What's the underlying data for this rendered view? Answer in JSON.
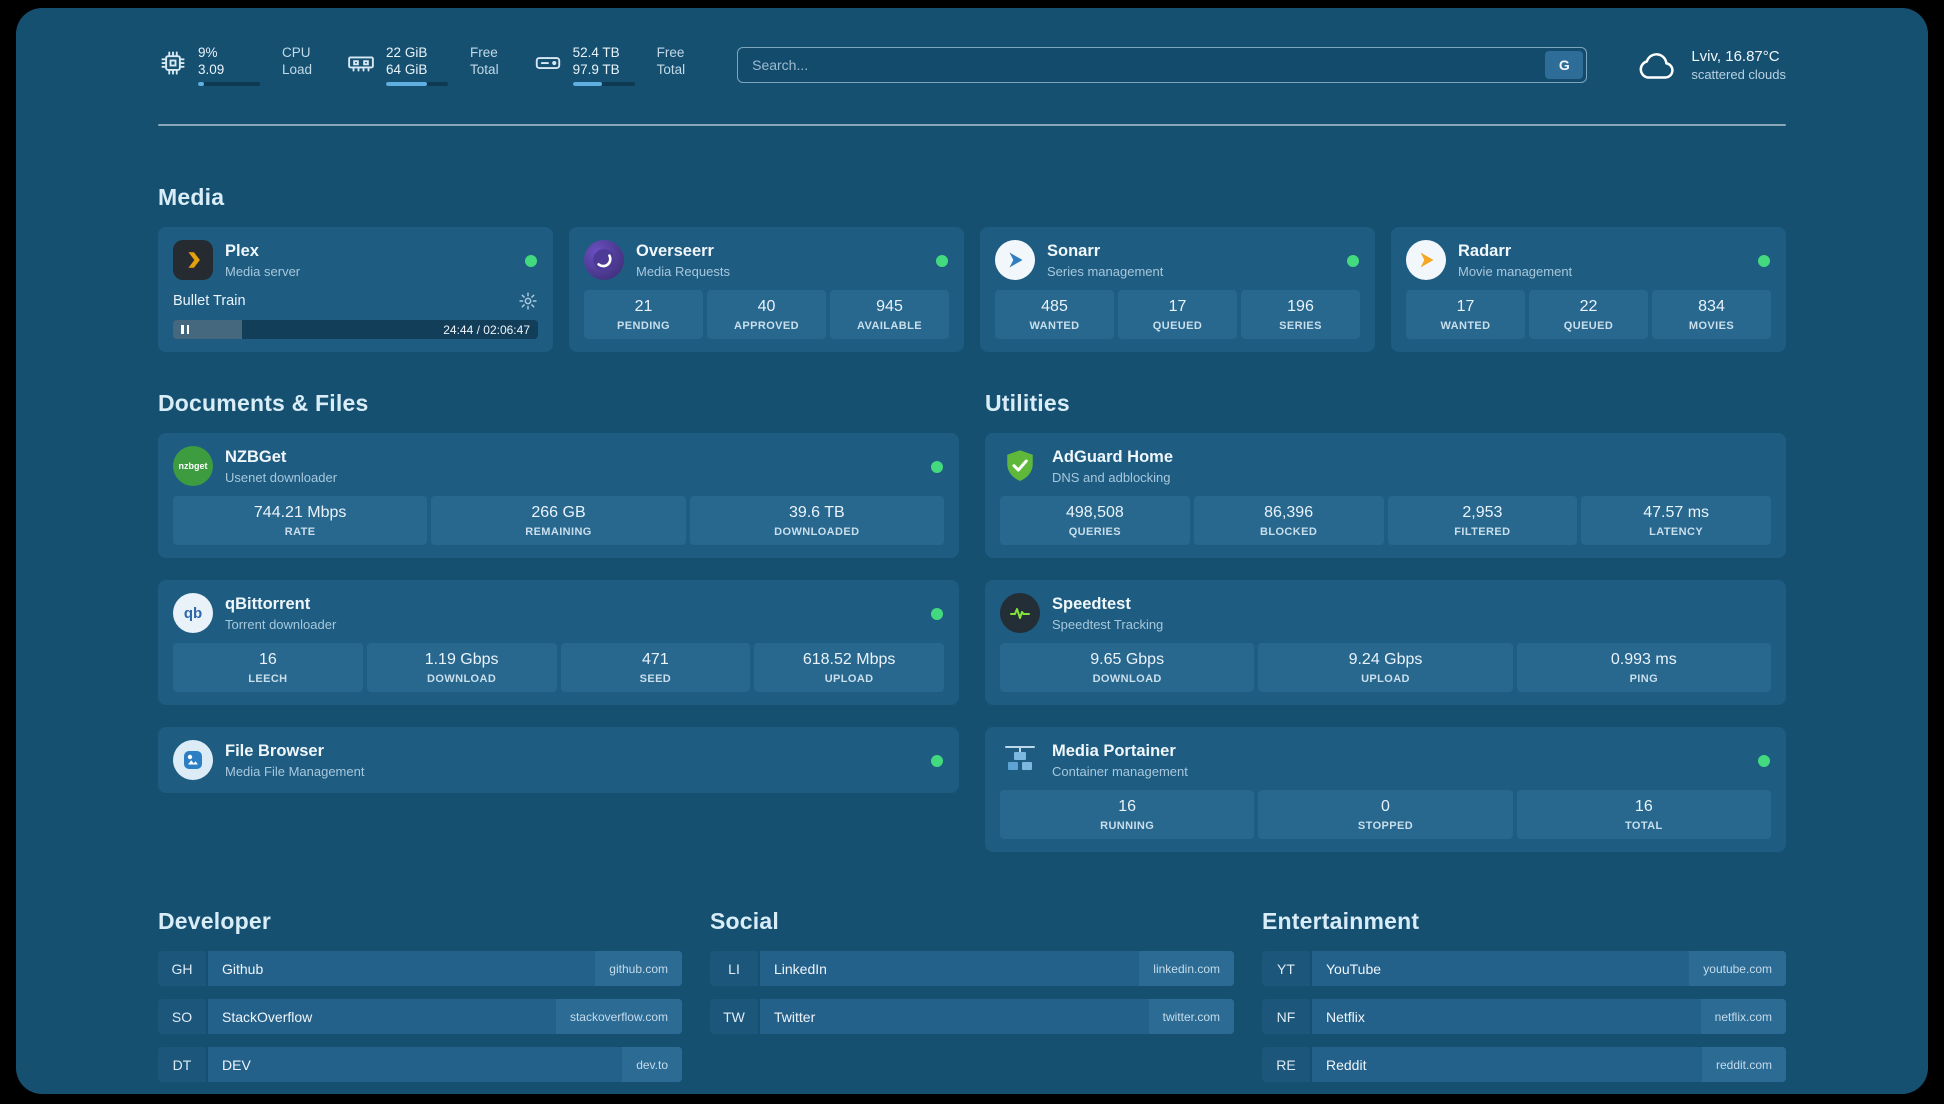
{
  "colors": {
    "status_online": "#43d97e",
    "accent_bar": "#5fb0e0"
  },
  "topbar": {
    "widgets": [
      {
        "icon": "cpu-chip-icon",
        "values": [
          "9%",
          "3.09"
        ],
        "labels": [
          "CPU",
          "Load"
        ],
        "bar_pct": 9
      },
      {
        "icon": "memory-icon",
        "values": [
          "22 GiB",
          "64 GiB"
        ],
        "labels": [
          "Free",
          "Total"
        ],
        "bar_pct": 66
      },
      {
        "icon": "disk-icon",
        "values": [
          "52.4 TB",
          "97.9 TB"
        ],
        "labels": [
          "Free",
          "Total"
        ],
        "bar_pct": 47
      }
    ],
    "search": {
      "placeholder": "Search...",
      "provider_button": "G"
    },
    "weather": {
      "icon": "cloud-icon",
      "location": "Lviv, 16.87°C",
      "condition": "scattered clouds"
    }
  },
  "sections": {
    "media": "Media",
    "documents": "Documents & Files",
    "utilities": "Utilities"
  },
  "media_cards": {
    "plex": {
      "name": "Plex",
      "subtitle": "Media server",
      "icon": "plex-icon",
      "status_color": "#43d97e",
      "now_playing": "Bullet Train",
      "time": "24:44 / 02:06:47",
      "progress_pct": 19
    },
    "overseerr": {
      "name": "Overseerr",
      "subtitle": "Media Requests",
      "icon": "overseerr-icon",
      "status_color": "#43d97e",
      "stats": [
        {
          "value": "21",
          "label": "PENDING"
        },
        {
          "value": "40",
          "label": "APPROVED"
        },
        {
          "value": "945",
          "label": "AVAILABLE"
        }
      ]
    },
    "sonarr": {
      "name": "Sonarr",
      "subtitle": "Series management",
      "icon": "sonarr-icon",
      "status_color": "#43d97e",
      "stats": [
        {
          "value": "485",
          "label": "WANTED"
        },
        {
          "value": "17",
          "label": "QUEUED"
        },
        {
          "value": "196",
          "label": "SERIES"
        }
      ]
    },
    "radarr": {
      "name": "Radarr",
      "subtitle": "Movie management",
      "icon": "radarr-icon",
      "status_color": "#43d97e",
      "stats": [
        {
          "value": "17",
          "label": "WANTED"
        },
        {
          "value": "22",
          "label": "QUEUED"
        },
        {
          "value": "834",
          "label": "MOVIES"
        }
      ]
    }
  },
  "document_cards": {
    "nzbget": {
      "name": "NZBGet",
      "subtitle": "Usenet downloader",
      "icon": "nzbget-icon",
      "icon_text": "nzbget",
      "status_color": "#43d97e",
      "stats": [
        {
          "value": "744.21 Mbps",
          "label": "RATE"
        },
        {
          "value": "266 GB",
          "label": "REMAINING"
        },
        {
          "value": "39.6 TB",
          "label": "DOWNLOADED"
        }
      ]
    },
    "qbittorrent": {
      "name": "qBittorrent",
      "subtitle": "Torrent downloader",
      "icon": "qbittorrent-icon",
      "icon_text": "qb",
      "status_color": "#43d97e",
      "stats": [
        {
          "value": "16",
          "label": "LEECH"
        },
        {
          "value": "1.19 Gbps",
          "label": "DOWNLOAD"
        },
        {
          "value": "471",
          "label": "SEED"
        },
        {
          "value": "618.52 Mbps",
          "label": "UPLOAD"
        }
      ]
    },
    "filebrowser": {
      "name": "File Browser",
      "subtitle": "Media File Management",
      "icon": "filebrowser-icon",
      "status_color": "#43d97e"
    }
  },
  "utility_cards": {
    "adguard": {
      "name": "AdGuard Home",
      "subtitle": "DNS and adblocking",
      "icon": "adguard-shield-icon",
      "stats": [
        {
          "value": "498,508",
          "label": "QUERIES"
        },
        {
          "value": "86,396",
          "label": "BLOCKED"
        },
        {
          "value": "2,953",
          "label": "FILTERED"
        },
        {
          "value": "47.57 ms",
          "label": "LATENCY"
        }
      ]
    },
    "speedtest": {
      "name": "Speedtest",
      "subtitle": "Speedtest Tracking",
      "icon": "speedtest-icon",
      "stats": [
        {
          "value": "9.65 Gbps",
          "label": "DOWNLOAD"
        },
        {
          "value": "9.24 Gbps",
          "label": "UPLOAD"
        },
        {
          "value": "0.993 ms",
          "label": "PING"
        }
      ]
    },
    "portainer": {
      "name": "Media Portainer",
      "subtitle": "Container management",
      "icon": "portainer-crane-icon",
      "status_color": "#43d97e",
      "stats": [
        {
          "value": "16",
          "label": "RUNNING"
        },
        {
          "value": "0",
          "label": "STOPPED"
        },
        {
          "value": "16",
          "label": "TOTAL"
        }
      ]
    }
  },
  "bookmarks": [
    {
      "title": "Developer",
      "items": [
        {
          "abbr": "GH",
          "name": "Github",
          "url": "github.com"
        },
        {
          "abbr": "SO",
          "name": "StackOverflow",
          "url": "stackoverflow.com"
        },
        {
          "abbr": "DT",
          "name": "DEV",
          "url": "dev.to"
        }
      ]
    },
    {
      "title": "Social",
      "items": [
        {
          "abbr": "LI",
          "name": "LinkedIn",
          "url": "linkedin.com"
        },
        {
          "abbr": "TW",
          "name": "Twitter",
          "url": "twitter.com"
        }
      ]
    },
    {
      "title": "Entertainment",
      "items": [
        {
          "abbr": "YT",
          "name": "YouTube",
          "url": "youtube.com"
        },
        {
          "abbr": "NF",
          "name": "Netflix",
          "url": "netflix.com"
        },
        {
          "abbr": "RE",
          "name": "Reddit",
          "url": "reddit.com"
        }
      ]
    }
  ]
}
